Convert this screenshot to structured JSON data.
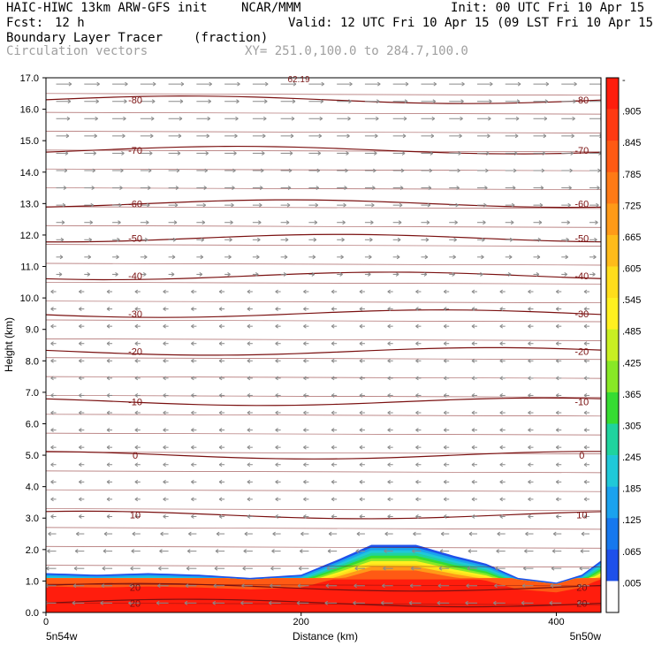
{
  "header": {
    "title_left": "HAIC-HIWC 13km ARW-GFS init",
    "org": "NCAR/MMM",
    "init": "Init: 00 UTC Fri 10 Apr 15",
    "fcst_label": "Fcst:",
    "fcst_value": "12 h",
    "valid": "Valid: 12 UTC Fri 10 Apr 15 (09 LST Fri 10 Apr 15)",
    "field_name": "Boundary Layer Tracer",
    "field_units": "(fraction)",
    "vectors_label": "Circulation vectors",
    "xsec": "XY= 251.0,100.0 to 284.7,100.0"
  },
  "chart_data": {
    "type": "heatmap",
    "ylabel": "Height (km)",
    "xlabel": "Distance (km)",
    "ylim": [
      0,
      17
    ],
    "xlim": [
      0,
      435
    ],
    "y_ticks": [
      "0.0",
      "1.0",
      "2.0",
      "3.0",
      "4.0",
      "5.0",
      "6.0",
      "7.0",
      "8.0",
      "9.0",
      "10.0",
      "11.0",
      "12.0",
      "13.0",
      "14.0",
      "15.0",
      "16.0",
      "17.0"
    ],
    "x_ticks": [
      {
        "value": 0,
        "label": "0"
      },
      {
        "value": 200,
        "label": "200"
      },
      {
        "value": 400,
        "label": "400"
      }
    ],
    "x_end_left": "5n54w",
    "x_end_right": "5n50w",
    "top_annotation": "62.19",
    "colorbar_labels": [
      "-",
      ".905",
      ".845",
      ".785",
      ".725",
      ".665",
      ".605",
      ".545",
      ".485",
      ".425",
      ".365",
      ".305",
      ".245",
      ".185",
      ".125",
      ".065",
      ".005"
    ],
    "colorbar_colors": [
      "#ff1d0d",
      "#ff3a12",
      "#ff5a14",
      "#ff7a16",
      "#ff9a18",
      "#ffbb1a",
      "#ffdd1c",
      "#fff020",
      "#c8ef22",
      "#88e826",
      "#36dc32",
      "#1fd39e",
      "#20c8d8",
      "#1aa2ee",
      "#1678ee",
      "#1e50ea",
      "#ffffff"
    ],
    "isotherms": [
      {
        "height_km": 0.3,
        "label": "20"
      },
      {
        "height_km": 0.8,
        "label": "20"
      },
      {
        "height_km": 3.1,
        "label": "10"
      },
      {
        "height_km": 5.0,
        "label": "0"
      },
      {
        "height_km": 6.7,
        "label": "-10"
      },
      {
        "height_km": 8.3,
        "label": "-20"
      },
      {
        "height_km": 9.5,
        "label": "-30"
      },
      {
        "height_km": 10.7,
        "label": "-40"
      },
      {
        "height_km": 11.9,
        "label": "-50"
      },
      {
        "height_km": 13.0,
        "label": "-60"
      },
      {
        "height_km": 14.7,
        "label": "-70"
      },
      {
        "height_km": 16.3,
        "label": "-80"
      }
    ],
    "tracer_top_km": [
      {
        "x": 0,
        "top": 1.25
      },
      {
        "x": 40,
        "top": 1.2
      },
      {
        "x": 80,
        "top": 1.25
      },
      {
        "x": 120,
        "top": 1.2
      },
      {
        "x": 160,
        "top": 1.1
      },
      {
        "x": 200,
        "top": 1.2
      },
      {
        "x": 230,
        "top": 1.7
      },
      {
        "x": 255,
        "top": 2.15
      },
      {
        "x": 290,
        "top": 2.15
      },
      {
        "x": 320,
        "top": 1.8
      },
      {
        "x": 345,
        "top": 1.55
      },
      {
        "x": 370,
        "top": 1.1
      },
      {
        "x": 400,
        "top": 0.95
      },
      {
        "x": 420,
        "top": 1.2
      },
      {
        "x": 435,
        "top": 1.65
      }
    ]
  }
}
